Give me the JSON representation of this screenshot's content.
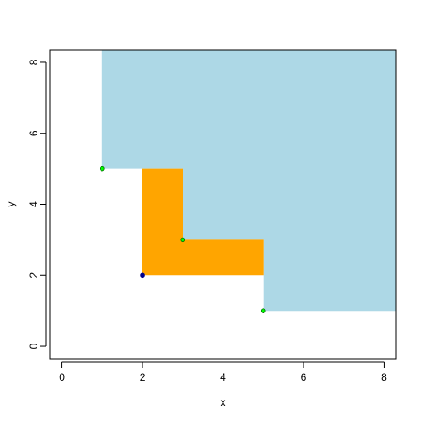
{
  "chart_data": {
    "type": "area",
    "title": "",
    "xlabel": "x",
    "ylabel": "y",
    "xlim": [
      -0.3,
      8.3
    ],
    "ylim": [
      -0.35,
      8.35
    ],
    "xticks": [
      0,
      2,
      4,
      6,
      8
    ],
    "yticks": [
      0,
      2,
      4,
      6,
      8
    ],
    "grid": false,
    "legend": "none",
    "regions": [
      {
        "fill": "#add8e6",
        "polygon": [
          [
            1,
            8.35
          ],
          [
            1,
            5
          ],
          [
            3,
            5
          ],
          [
            3,
            3
          ],
          [
            5,
            3
          ],
          [
            5,
            1
          ],
          [
            8.3,
            1
          ],
          [
            8.3,
            8.35
          ]
        ]
      },
      {
        "fill": "#ffa500",
        "polygon": [
          [
            2,
            5
          ],
          [
            3,
            5
          ],
          [
            3,
            3
          ],
          [
            5,
            3
          ],
          [
            5,
            2
          ],
          [
            2,
            2
          ]
        ]
      }
    ],
    "points": [
      {
        "x": 1,
        "y": 5,
        "fill": "#00ff00",
        "stroke": "#006400"
      },
      {
        "x": 3,
        "y": 3,
        "fill": "#00ff00",
        "stroke": "#006400"
      },
      {
        "x": 5,
        "y": 1,
        "fill": "#00ff00",
        "stroke": "#006400"
      },
      {
        "x": 2,
        "y": 2,
        "fill": "#00008b",
        "stroke": "#00008b"
      }
    ]
  }
}
